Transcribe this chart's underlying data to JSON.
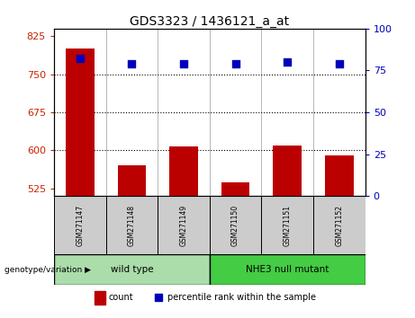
{
  "title": "GDS3323 / 1436121_a_at",
  "samples": [
    "GSM271147",
    "GSM271148",
    "GSM271149",
    "GSM271150",
    "GSM271151",
    "GSM271152"
  ],
  "counts": [
    800,
    570,
    608,
    537,
    610,
    590
  ],
  "percentile_ranks": [
    82,
    79,
    79,
    79,
    80,
    79
  ],
  "ylim_left": [
    510,
    840
  ],
  "ylim_right": [
    0,
    100
  ],
  "yticks_left": [
    525,
    600,
    675,
    750,
    825
  ],
  "yticks_right": [
    0,
    25,
    50,
    75,
    100
  ],
  "hlines": [
    750,
    675,
    600
  ],
  "groups": [
    {
      "label": "wild type",
      "indices": [
        0,
        1,
        2
      ],
      "color": "#90ee90"
    },
    {
      "label": "NHE3 null mutant",
      "indices": [
        3,
        4,
        5
      ],
      "color": "#44dd44"
    }
  ],
  "bar_color": "#bb0000",
  "dot_color": "#0000bb",
  "bar_width": 0.55,
  "count_label": "count",
  "percentile_label": "percentile rank within the sample",
  "genotype_label": "genotype/variation",
  "tick_label_color_left": "#cc2200",
  "tick_label_color_right": "#0000bb",
  "sample_cell_color": "#cccccc",
  "background_groups_wt": "#aaddaa",
  "background_groups_mut": "#44cc44"
}
